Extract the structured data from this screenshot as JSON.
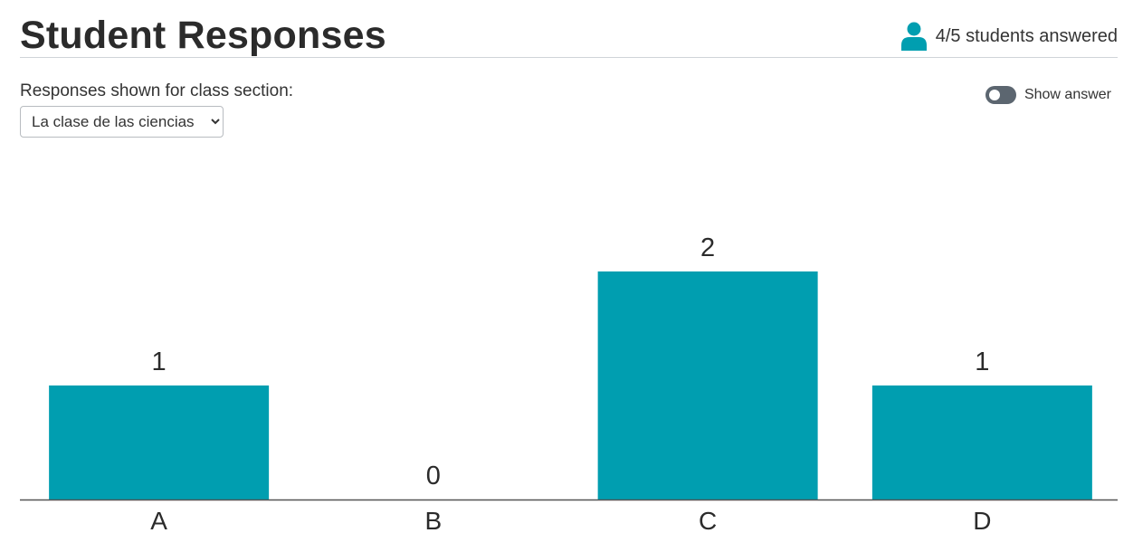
{
  "header": {
    "title": "Student Responses",
    "answered_text": "4/5 students answered",
    "icon": "person-icon"
  },
  "controls": {
    "section_label": "Responses shown for class section:",
    "section_selected": "La clase de las ciencias",
    "show_answer_label": "Show answer",
    "show_answer_on": false
  },
  "colors": {
    "bar": "#009eb0",
    "icon": "#009eb0",
    "axis": "#555555"
  },
  "chart_data": {
    "type": "bar",
    "categories": [
      "A",
      "B",
      "C",
      "D"
    ],
    "values": [
      1,
      0,
      2,
      1
    ],
    "title": "",
    "xlabel": "",
    "ylabel": "",
    "ylim": [
      0,
      2
    ],
    "data_labels": true,
    "grid": false
  }
}
